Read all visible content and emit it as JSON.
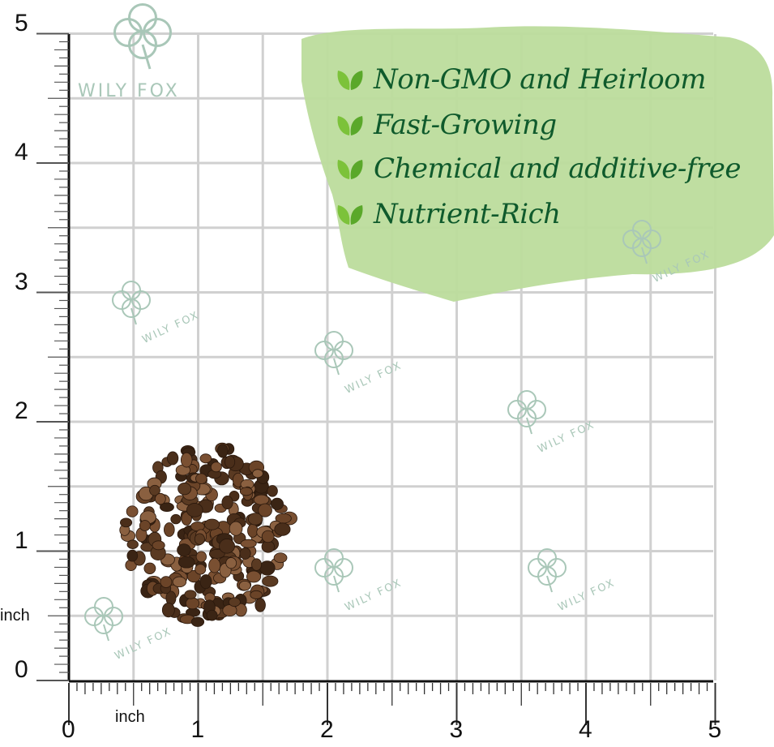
{
  "colors": {
    "grid": "#d0d0d0",
    "axis": "#111111",
    "banner": "#bcdc9c",
    "feature_text": "#0f5a2c",
    "leaf": "#7cc23a",
    "seed": "#5a3a22",
    "watermark": "#a9c7b8"
  },
  "brand_logo": {
    "text": "WILY FOX",
    "icon": "clover-icon"
  },
  "watermark_text": "WILY FOX",
  "features": [
    {
      "icon": "leaf-icon",
      "label": "Non-GMO and Heirloom"
    },
    {
      "icon": "leaf-icon",
      "label": "Fast-Growing"
    },
    {
      "icon": "leaf-icon",
      "label": "Chemical and additive-free"
    },
    {
      "icon": "leaf-icon",
      "label": "Nutrient-Rich"
    }
  ],
  "ruler": {
    "unit": "inch",
    "x_labels": [
      "0",
      "1",
      "2",
      "3",
      "4",
      "5"
    ],
    "y_labels": [
      "0",
      "1",
      "2",
      "3",
      "4",
      "5"
    ],
    "x_unit_label": "inch",
    "y_unit_label": "inch"
  },
  "product": {
    "subject": "seed pile",
    "approx_size_inch": 1.5
  }
}
